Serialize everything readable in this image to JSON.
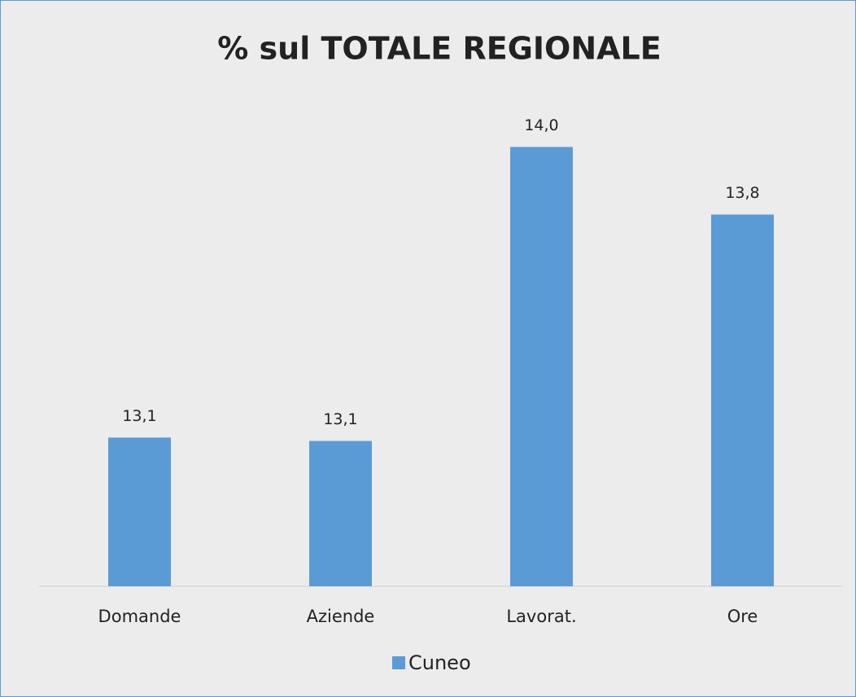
{
  "chart_data": {
    "type": "bar",
    "title": "% sul TOTALE REGIONALE",
    "categories": [
      "Domande",
      "Aziende",
      "Lavorat.",
      "Ore"
    ],
    "series": [
      {
        "name": "Cuneo",
        "color": "#5b9bd5",
        "values": [
          13.14,
          13.13,
          14.0,
          13.8
        ],
        "value_labels": [
          "13,1",
          "13,1",
          "14,0",
          "13,8"
        ]
      }
    ],
    "ylim": [
      12.7,
      14.1
    ],
    "legend": "bottom"
  }
}
